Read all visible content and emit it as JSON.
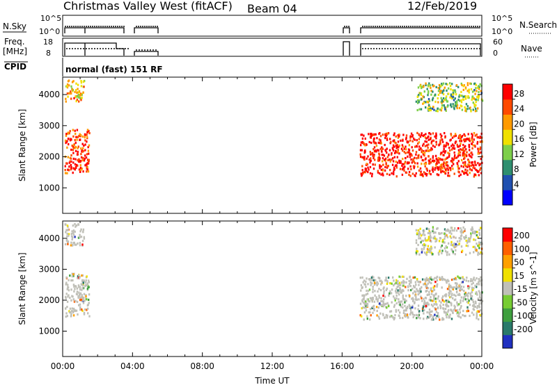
{
  "header": {
    "title": "Christmas Valley West (fitACF)",
    "beam": "Beam 04",
    "date": "12/Feb/2019"
  },
  "top_panels": {
    "nsky": {
      "left_label": "N.Sky",
      "left_ticks": [
        "10^5",
        "10^0"
      ],
      "right_label": "N.Search",
      "right_ticks": [
        "10^5",
        "10^0"
      ]
    },
    "freq": {
      "left_label_1": "Freq.",
      "left_label_2": "[MHz]",
      "left_ticks": [
        "18",
        "8"
      ],
      "right_label": "Nave",
      "right_ticks": [
        "60",
        "0"
      ]
    },
    "cpid": {
      "label": "CPID",
      "program": "normal (fast) 151 RF"
    }
  },
  "chart_data": [
    {
      "type": "heatmap",
      "title": "",
      "xlabel": "",
      "ylabel": "Slant Range [km]",
      "xlim": [
        0,
        24
      ],
      "ylim": [
        180,
        4560
      ],
      "ytick_labels": [
        "1000",
        "2000",
        "3000",
        "4000"
      ],
      "ytick_values": [
        1000,
        2000,
        3000,
        4000
      ],
      "colorbar": {
        "label": "Power [dB]",
        "ticks": [
          "4",
          "8",
          "12",
          "16",
          "20",
          "24",
          "28"
        ],
        "range": [
          0,
          30
        ],
        "colors": [
          "#0000ff",
          "#2050b0",
          "#2f8f6f",
          "#7dcf4a",
          "#f0e000",
          "#ff9a00",
          "#ff4a00",
          "#ff0000"
        ]
      },
      "regions": [
        {
          "start_ut": 0.1,
          "end_ut": 1.5,
          "range_km": [
            1500,
            2900
          ],
          "level": 26
        },
        {
          "start_ut": 0.1,
          "end_ut": 1.2,
          "range_km": [
            3800,
            4500
          ],
          "level": 20
        },
        {
          "start_ut": 17.0,
          "end_ut": 24.0,
          "range_km": [
            1400,
            2800
          ],
          "level": 28
        },
        {
          "start_ut": 20.2,
          "end_ut": 24.0,
          "range_km": [
            3500,
            4400
          ],
          "level": 14
        }
      ]
    },
    {
      "type": "heatmap",
      "title": "",
      "xlabel": "Time UT",
      "ylabel": "Slant Range [km]",
      "xlim": [
        0,
        24
      ],
      "ylim": [
        180,
        4560
      ],
      "xtick_labels": [
        "00:00",
        "04:00",
        "08:00",
        "12:00",
        "16:00",
        "20:00",
        "00:00"
      ],
      "xtick_values": [
        0,
        4,
        8,
        12,
        16,
        20,
        24
      ],
      "ytick_labels": [
        "1000",
        "2000",
        "3000",
        "4000"
      ],
      "ytick_values": [
        1000,
        2000,
        3000,
        4000
      ],
      "colorbar": {
        "label": "Velocity [m s^-1]",
        "ticks": [
          "200",
          "100",
          "50",
          "15",
          "-15",
          "-50",
          "-100",
          "-200"
        ],
        "range": [
          -250,
          250
        ],
        "colors": [
          "#2030c0",
          "#2a7a6a",
          "#3f9f3f",
          "#77cc33",
          "#c0c0b8",
          "#f0e000",
          "#ffa000",
          "#ff6000",
          "#ff0000"
        ]
      },
      "regions": [
        {
          "start_ut": 0.1,
          "end_ut": 1.5,
          "range_km": [
            1500,
            2900
          ],
          "level": 0
        },
        {
          "start_ut": 0.1,
          "end_ut": 1.2,
          "range_km": [
            3800,
            4500
          ],
          "level": 0
        },
        {
          "start_ut": 17.0,
          "end_ut": 24.0,
          "range_km": [
            1400,
            2800
          ],
          "level": 0
        },
        {
          "start_ut": 20.2,
          "end_ut": 24.0,
          "range_km": [
            3500,
            4400
          ],
          "level": 20
        }
      ]
    }
  ]
}
